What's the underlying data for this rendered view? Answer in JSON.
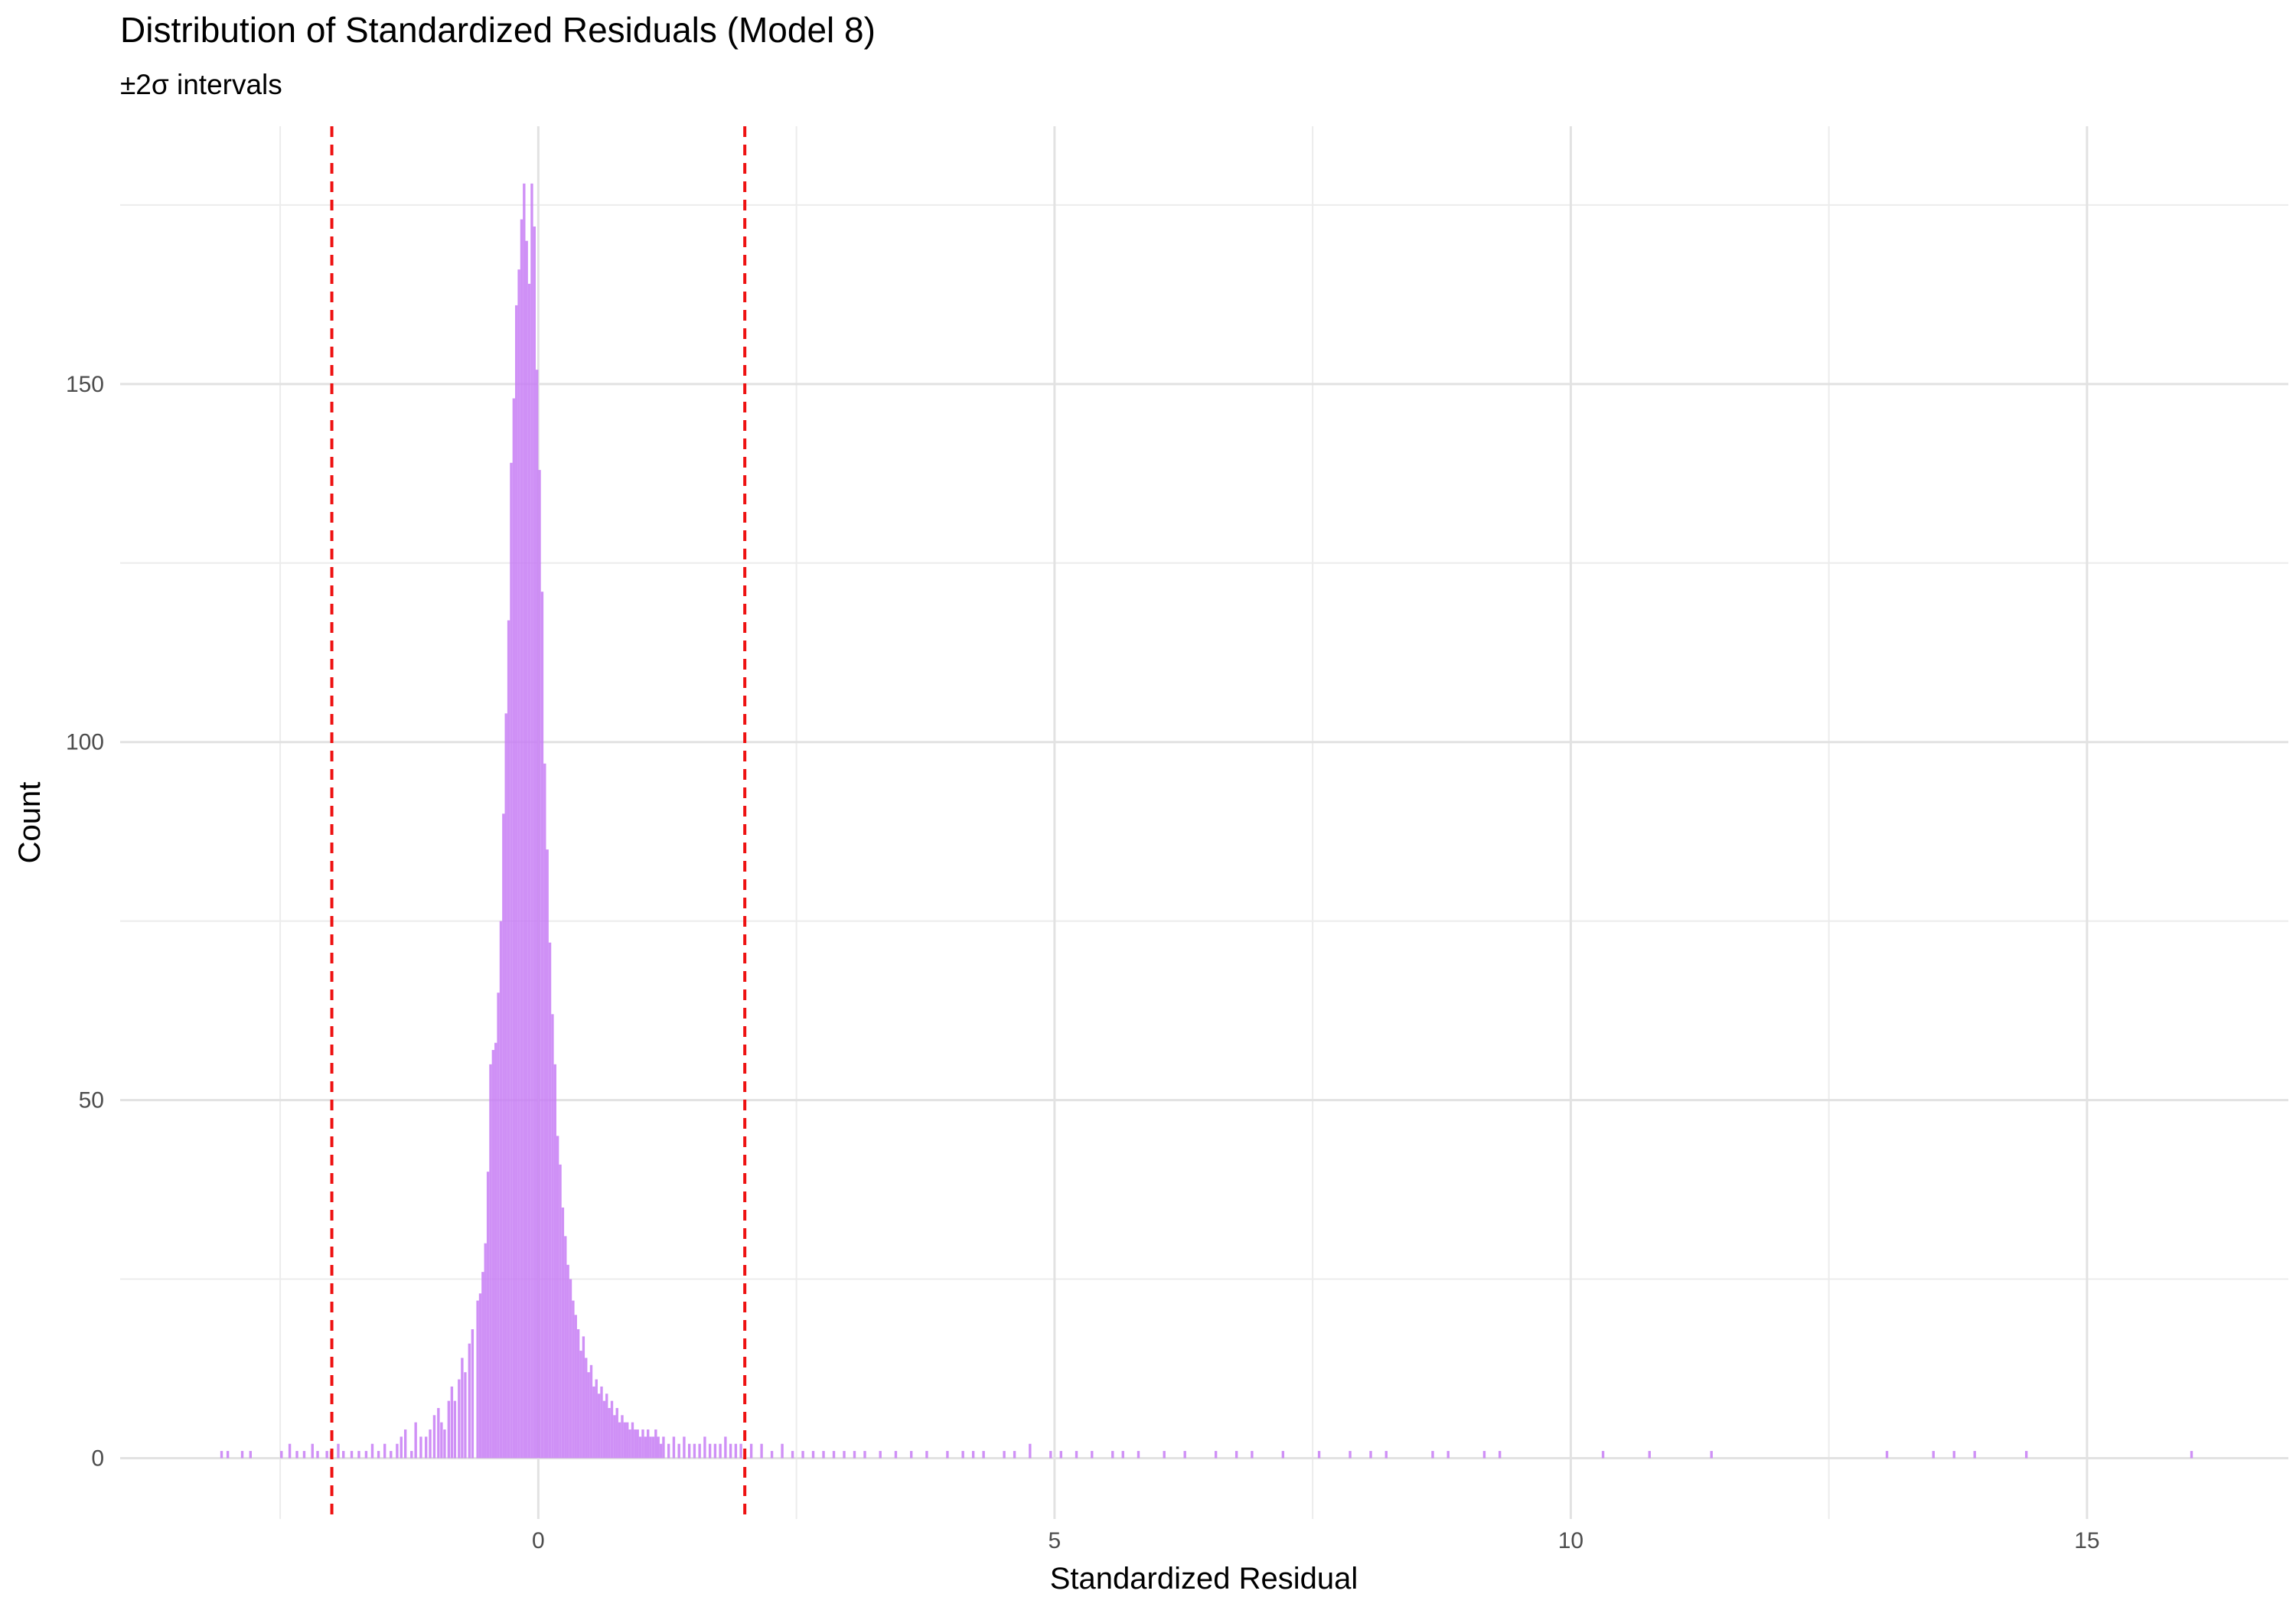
{
  "chart_data": {
    "type": "bar",
    "title": "Distribution of Standardized Residuals (Model 8)",
    "subtitle": "±2σ intervals",
    "xlabel": "Standardized Residual",
    "ylabel": "Count",
    "xlim": [
      -4.05,
      16.95
    ],
    "ylim": [
      -8.5,
      186
    ],
    "x_ticks": [
      0,
      5,
      10,
      15
    ],
    "y_ticks": [
      0,
      50,
      100,
      150
    ],
    "x_minor_gridlines": [
      -2.5,
      2.5,
      7.5,
      12.5
    ],
    "y_minor_gridlines": [
      25,
      75,
      125,
      175
    ],
    "grid": true,
    "legend": "none",
    "bar_color": "#c77cf5",
    "reference_line_color": "#ee1111",
    "reference_lines": [
      -2,
      2
    ],
    "bin_width": 0.025,
    "bins": [
      [
        -3.08,
        1
      ],
      [
        -3.02,
        1
      ],
      [
        -2.88,
        1
      ],
      [
        -2.8,
        1
      ],
      [
        -2.5,
        1
      ],
      [
        -2.42,
        2
      ],
      [
        -2.35,
        1
      ],
      [
        -2.28,
        1
      ],
      [
        -2.2,
        2
      ],
      [
        -2.15,
        1
      ],
      [
        -2.06,
        1
      ],
      [
        -2.02,
        1
      ],
      [
        -1.95,
        2
      ],
      [
        -1.9,
        1
      ],
      [
        -1.82,
        1
      ],
      [
        -1.75,
        1
      ],
      [
        -1.68,
        1
      ],
      [
        -1.62,
        2
      ],
      [
        -1.56,
        1
      ],
      [
        -1.5,
        2
      ],
      [
        -1.44,
        1
      ],
      [
        -1.38,
        2
      ],
      [
        -1.34,
        3
      ],
      [
        -1.3,
        4
      ],
      [
        -1.24,
        1
      ],
      [
        -1.2,
        5
      ],
      [
        -1.15,
        3
      ],
      [
        -1.1,
        3
      ],
      [
        -1.06,
        4
      ],
      [
        -1.02,
        6
      ],
      [
        -0.98,
        7
      ],
      [
        -0.95,
        5
      ],
      [
        -0.92,
        4
      ],
      [
        -0.88,
        8
      ],
      [
        -0.85,
        10
      ],
      [
        -0.82,
        8
      ],
      [
        -0.78,
        11
      ],
      [
        -0.75,
        14
      ],
      [
        -0.72,
        12
      ],
      [
        -0.68,
        16
      ],
      [
        -0.65,
        18
      ],
      [
        -0.6,
        22
      ],
      [
        -0.575,
        23
      ],
      [
        -0.55,
        26
      ],
      [
        -0.525,
        30
      ],
      [
        -0.5,
        40
      ],
      [
        -0.475,
        55
      ],
      [
        -0.45,
        57
      ],
      [
        -0.425,
        58
      ],
      [
        -0.4,
        65
      ],
      [
        -0.375,
        75
      ],
      [
        -0.35,
        90
      ],
      [
        -0.325,
        104
      ],
      [
        -0.3,
        117
      ],
      [
        -0.275,
        139
      ],
      [
        -0.25,
        148
      ],
      [
        -0.225,
        161
      ],
      [
        -0.2,
        166
      ],
      [
        -0.175,
        173
      ],
      [
        -0.15,
        178
      ],
      [
        -0.125,
        170
      ],
      [
        -0.1,
        164
      ],
      [
        -0.075,
        178
      ],
      [
        -0.05,
        172
      ],
      [
        -0.025,
        152
      ],
      [
        0,
        138
      ],
      [
        0.025,
        121
      ],
      [
        0.05,
        97
      ],
      [
        0.075,
        85
      ],
      [
        0.1,
        72
      ],
      [
        0.125,
        62
      ],
      [
        0.15,
        55
      ],
      [
        0.175,
        45
      ],
      [
        0.2,
        41
      ],
      [
        0.225,
        35
      ],
      [
        0.25,
        31
      ],
      [
        0.275,
        27
      ],
      [
        0.3,
        25
      ],
      [
        0.325,
        22
      ],
      [
        0.35,
        20
      ],
      [
        0.375,
        18
      ],
      [
        0.4,
        15
      ],
      [
        0.425,
        17
      ],
      [
        0.45,
        14
      ],
      [
        0.475,
        12
      ],
      [
        0.5,
        13
      ],
      [
        0.525,
        10
      ],
      [
        0.55,
        11
      ],
      [
        0.575,
        9
      ],
      [
        0.6,
        10
      ],
      [
        0.625,
        8
      ],
      [
        0.65,
        9
      ],
      [
        0.675,
        7
      ],
      [
        0.7,
        8
      ],
      [
        0.725,
        6
      ],
      [
        0.75,
        7
      ],
      [
        0.775,
        5
      ],
      [
        0.8,
        6
      ],
      [
        0.825,
        5
      ],
      [
        0.85,
        5
      ],
      [
        0.875,
        4
      ],
      [
        0.9,
        5
      ],
      [
        0.925,
        4
      ],
      [
        0.95,
        4
      ],
      [
        0.975,
        3
      ],
      [
        1.0,
        4
      ],
      [
        1.025,
        3
      ],
      [
        1.05,
        4
      ],
      [
        1.075,
        3
      ],
      [
        1.1,
        3
      ],
      [
        1.125,
        4
      ],
      [
        1.15,
        3
      ],
      [
        1.175,
        2
      ],
      [
        1.2,
        3
      ],
      [
        1.25,
        2
      ],
      [
        1.3,
        3
      ],
      [
        1.35,
        2
      ],
      [
        1.4,
        3
      ],
      [
        1.45,
        2
      ],
      [
        1.5,
        2
      ],
      [
        1.55,
        2
      ],
      [
        1.6,
        3
      ],
      [
        1.65,
        2
      ],
      [
        1.7,
        2
      ],
      [
        1.75,
        2
      ],
      [
        1.8,
        3
      ],
      [
        1.85,
        2
      ],
      [
        1.9,
        2
      ],
      [
        1.95,
        2
      ],
      [
        2.05,
        2
      ],
      [
        2.15,
        2
      ],
      [
        2.25,
        1
      ],
      [
        2.35,
        2
      ],
      [
        2.45,
        1
      ],
      [
        2.55,
        1
      ],
      [
        2.65,
        1
      ],
      [
        2.75,
        1
      ],
      [
        2.85,
        1
      ],
      [
        2.95,
        1
      ],
      [
        3.05,
        1
      ],
      [
        3.15,
        1
      ],
      [
        3.3,
        1
      ],
      [
        3.45,
        1
      ],
      [
        3.6,
        1
      ],
      [
        3.75,
        1
      ],
      [
        3.95,
        1
      ],
      [
        4.1,
        1
      ],
      [
        4.2,
        1
      ],
      [
        4.3,
        1
      ],
      [
        4.5,
        1
      ],
      [
        4.6,
        1
      ],
      [
        4.75,
        2
      ],
      [
        4.95,
        1
      ],
      [
        5.05,
        1
      ],
      [
        5.2,
        1
      ],
      [
        5.35,
        1
      ],
      [
        5.55,
        1
      ],
      [
        5.65,
        1
      ],
      [
        5.8,
        1
      ],
      [
        6.05,
        1
      ],
      [
        6.25,
        1
      ],
      [
        6.55,
        1
      ],
      [
        6.75,
        1
      ],
      [
        6.9,
        1
      ],
      [
        7.2,
        1
      ],
      [
        7.55,
        1
      ],
      [
        7.85,
        1
      ],
      [
        8.05,
        1
      ],
      [
        8.2,
        1
      ],
      [
        8.65,
        1
      ],
      [
        8.8,
        1
      ],
      [
        9.15,
        1
      ],
      [
        9.3,
        1
      ],
      [
        10.3,
        1
      ],
      [
        10.75,
        1
      ],
      [
        11.35,
        1
      ],
      [
        13.05,
        1
      ],
      [
        13.5,
        1
      ],
      [
        13.7,
        1
      ],
      [
        13.9,
        1
      ],
      [
        14.4,
        1
      ],
      [
        16.0,
        1
      ]
    ]
  }
}
